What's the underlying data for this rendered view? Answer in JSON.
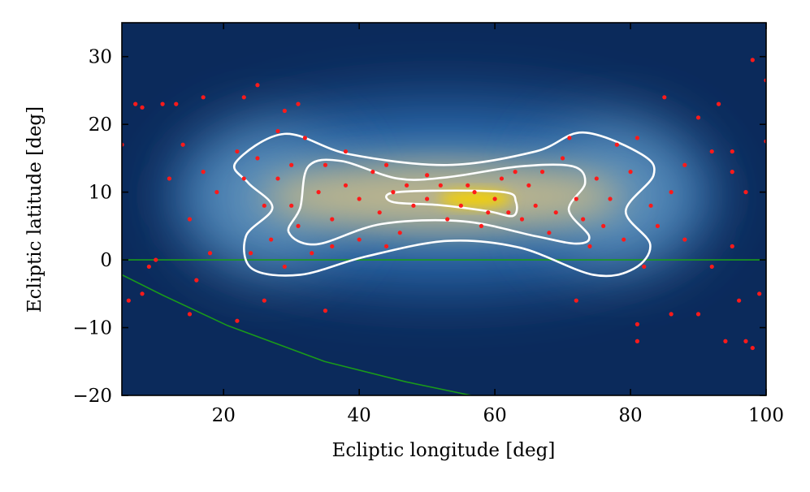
{
  "chart_data": {
    "type": "scatter",
    "xlabel": "Ecliptic longitude [deg]",
    "ylabel": "Ecliptic latitude [deg]",
    "xlim": [
      5,
      100
    ],
    "ylim": [
      -20,
      35
    ],
    "xticks": [
      20,
      40,
      60,
      80,
      100
    ],
    "yticks": [
      {
        "value": -20,
        "label": "−20"
      },
      {
        "value": -10,
        "label": "−10"
      },
      0,
      10,
      20,
      30
    ],
    "series": [
      {
        "color": "#ff1a1a",
        "x": [
          7,
          8,
          11,
          13,
          17,
          23,
          25,
          29,
          31,
          85,
          90,
          93,
          98,
          100,
          100,
          5,
          6,
          8,
          15,
          16,
          22,
          26,
          35,
          72,
          81,
          81,
          86,
          90,
          94,
          97,
          98,
          99,
          96,
          12,
          14,
          15,
          17,
          19,
          18,
          10,
          9,
          92,
          95,
          95,
          97,
          95,
          92,
          88,
          84,
          86,
          88,
          25,
          28,
          30,
          27,
          32,
          35,
          38,
          40,
          36,
          33,
          42,
          45,
          48,
          50,
          52,
          55,
          57,
          60,
          62,
          65,
          67,
          70,
          72,
          75,
          78,
          80,
          76,
          74,
          68,
          64,
          58,
          53,
          46,
          44,
          40,
          38,
          34,
          31,
          29,
          26,
          24,
          23,
          22,
          28,
          44,
          50,
          56,
          61,
          66,
          69,
          73,
          77,
          79,
          82,
          83,
          81,
          71,
          43,
          47,
          59,
          63,
          36,
          30
        ],
        "y": [
          23,
          22.5,
          23,
          23,
          24,
          24,
          25.8,
          22,
          23,
          24,
          21,
          23,
          29.5,
          26.5,
          17.5,
          17,
          -6,
          -5,
          -8,
          -3,
          -9,
          -6,
          -7.5,
          -6,
          -9.5,
          -12,
          -8,
          -8,
          -12,
          -12,
          -13,
          -5,
          -6,
          12,
          17,
          6,
          13,
          10,
          1,
          0,
          -1,
          16,
          16,
          13,
          10,
          2,
          -1,
          3,
          5,
          10,
          14,
          15,
          12,
          8,
          3,
          18,
          14,
          11,
          9,
          6,
          1,
          13,
          10,
          8,
          9,
          11,
          8,
          10,
          9,
          7,
          11,
          13,
          15,
          9,
          12,
          17,
          13,
          5,
          2,
          4,
          6,
          5,
          6,
          4,
          2,
          3,
          16,
          10,
          5,
          -1,
          8,
          1,
          12,
          16,
          19,
          14,
          12.5,
          11,
          12,
          8,
          7,
          6,
          9,
          3,
          -1,
          8,
          18,
          18,
          7,
          11,
          7,
          13,
          2,
          14
        ]
      }
    ],
    "contours": [
      {
        "color": "#ffffff",
        "x": [
          21.8,
          29,
          38.5,
          53,
          66,
          73,
          81.6,
          83.4,
          79.3,
          82.9,
          80.5,
          74.5,
          63.7,
          53,
          41,
          31.3,
          24.2,
          23.3,
          27.2,
          23.6
        ],
        "y": [
          14.4,
          18.6,
          15.6,
          14,
          16,
          18.8,
          15.6,
          12.5,
          7.2,
          2.3,
          -1.3,
          -2.2,
          1.8,
          2.8,
          0.5,
          -2.2,
          -1.3,
          3.5,
          7.7,
          11.4
        ]
      },
      {
        "color": "#ffffff",
        "x": [
          32.5,
          37.3,
          45.7,
          53,
          63.7,
          71.5,
          73.3,
          70.9,
          73.9,
          72,
          66,
          55.3,
          43.3,
          33.7,
          29.6,
          31.3
        ],
        "y": [
          13.8,
          14.6,
          12,
          12.2,
          13.8,
          13.8,
          11.3,
          7.4,
          3.5,
          2.4,
          3.5,
          5.7,
          5.3,
          2.3,
          4.1,
          7.7
        ]
      },
      {
        "color": "#ffffff",
        "x": [
          44.5,
          50.5,
          61.3,
          63.1,
          62.7,
          58.9,
          51.7,
          45.1
        ],
        "y": [
          9.8,
          10.2,
          10,
          8.6,
          6.5,
          7.2,
          8.1,
          8.5
        ]
      }
    ],
    "lines": [
      {
        "color": "#1a9a1a",
        "x": [
          5,
          100
        ],
        "y": [
          0,
          0
        ]
      },
      {
        "color": "#1a9a1a",
        "x": [
          5,
          11,
          20.6,
          34.9,
          46.9,
          56.5
        ],
        "y": [
          -2.2,
          -5.2,
          -9.7,
          -15,
          -18,
          -20
        ]
      }
    ]
  }
}
